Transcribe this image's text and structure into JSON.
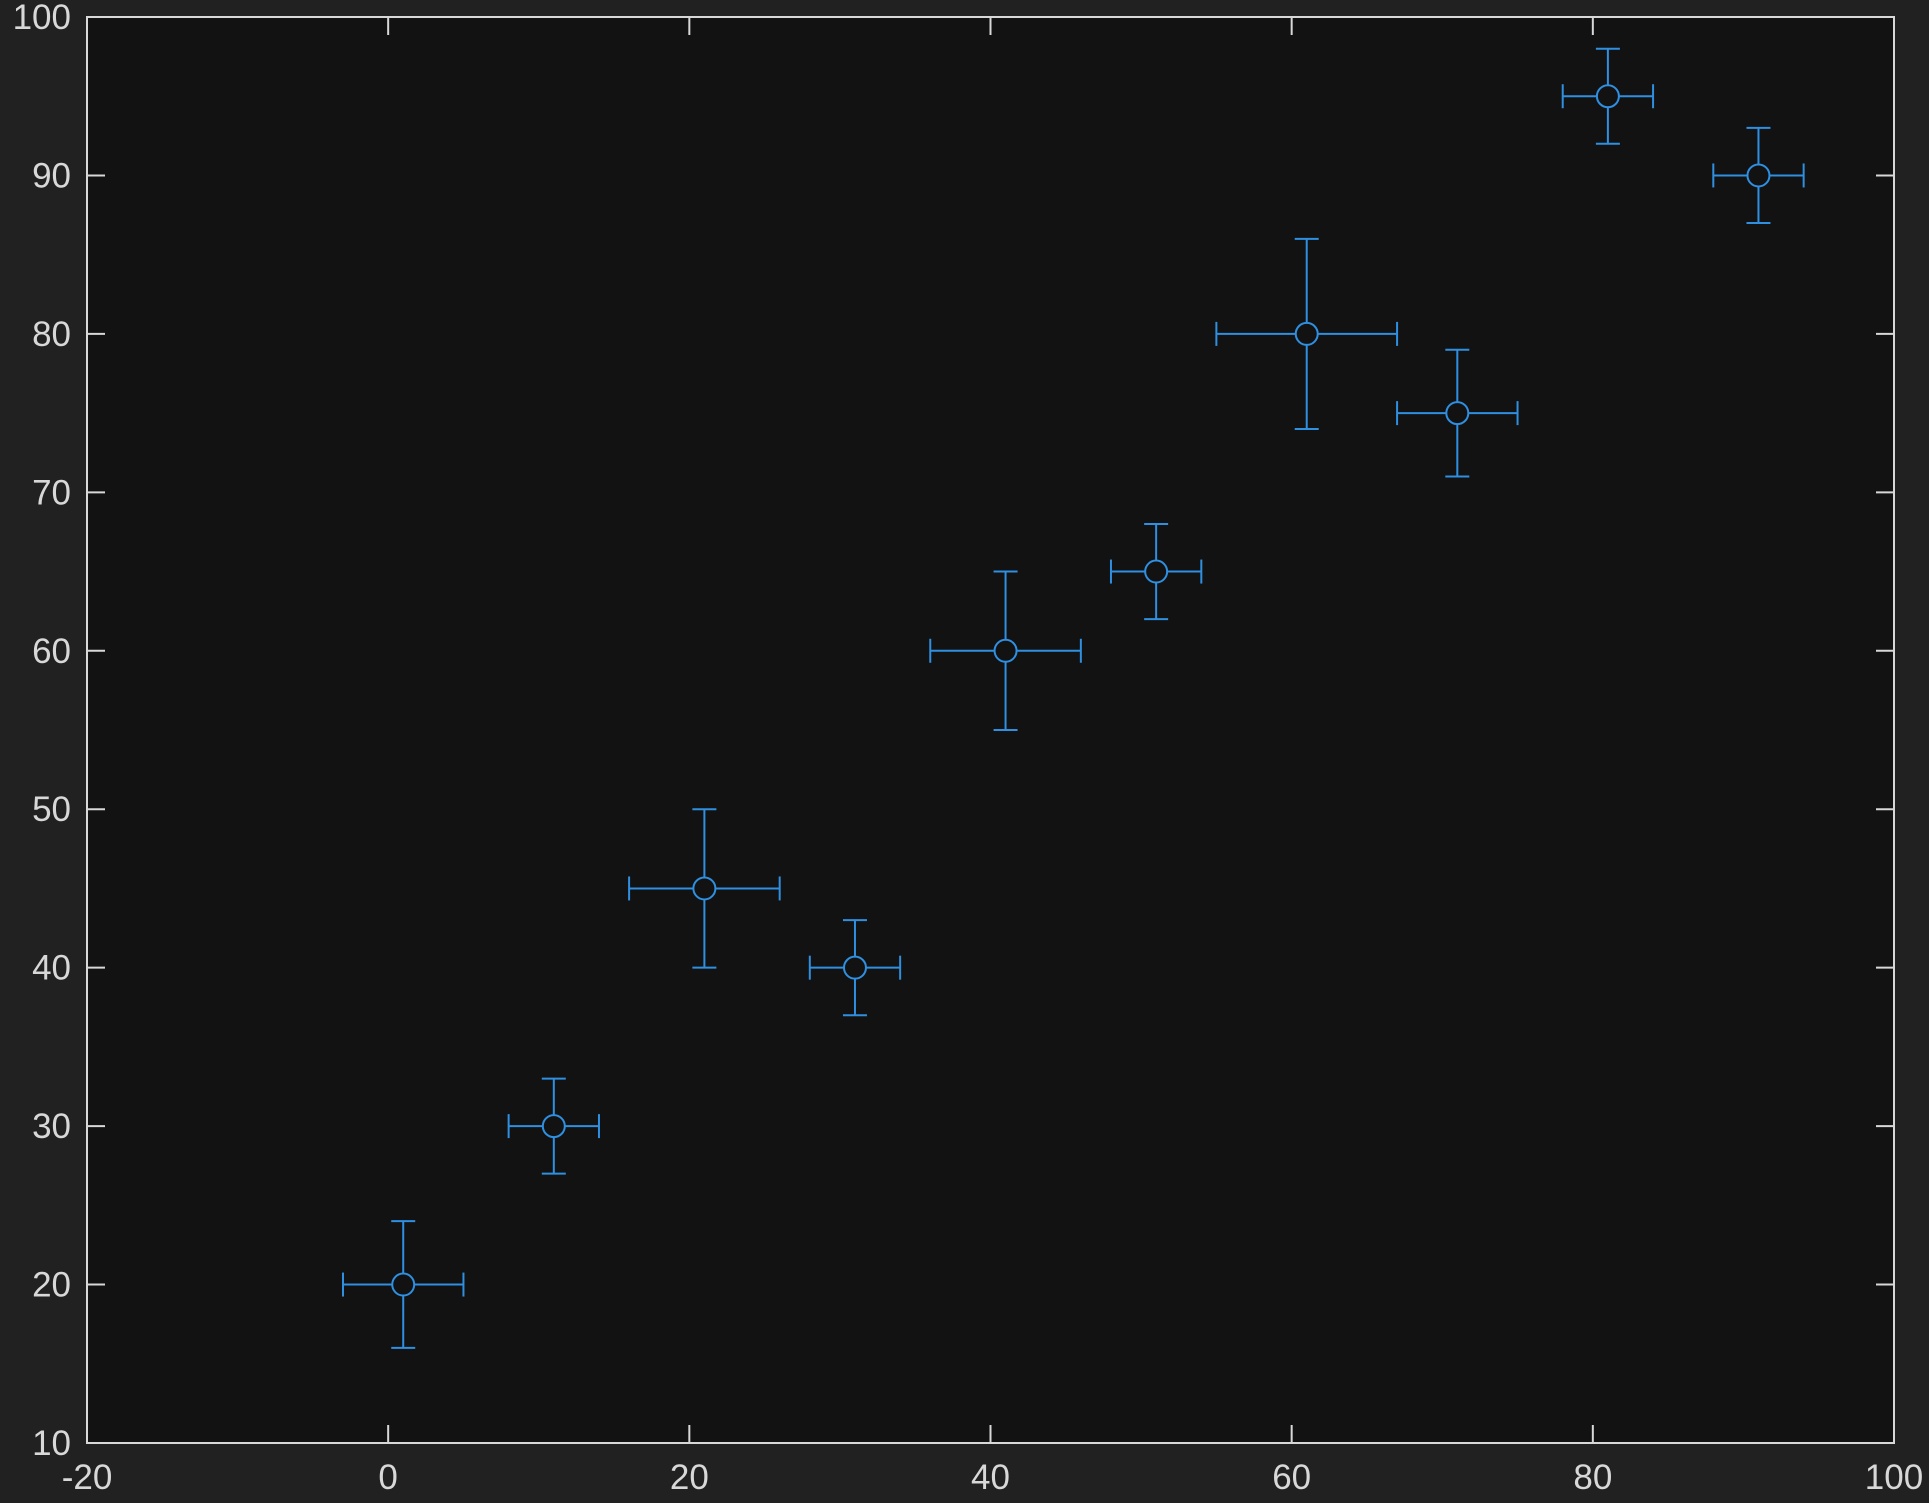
{
  "chart_data": {
    "type": "scatter",
    "title": "",
    "xlabel": "",
    "ylabel": "",
    "xlim": [
      -20,
      100
    ],
    "ylim": [
      10,
      100
    ],
    "xticks": [
      -20,
      0,
      20,
      40,
      60,
      80,
      100
    ],
    "yticks": [
      10,
      20,
      30,
      40,
      50,
      60,
      70,
      80,
      90,
      100
    ],
    "grid": false,
    "legend": "none",
    "colors": {
      "figure_background": "#212121",
      "axes_background": "#121212",
      "axes_line": "#d8d8d8",
      "tick_label": "#d8d8d8",
      "series": "#2f8fe0"
    },
    "series": [
      {
        "marker": "circle",
        "points": [
          {
            "x": 1,
            "y": 20,
            "xerr": 4,
            "yerr": 4
          },
          {
            "x": 11,
            "y": 30,
            "xerr": 3,
            "yerr": 3
          },
          {
            "x": 21,
            "y": 45,
            "xerr": 5,
            "yerr": 5
          },
          {
            "x": 31,
            "y": 40,
            "xerr": 3,
            "yerr": 3
          },
          {
            "x": 41,
            "y": 60,
            "xerr": 5,
            "yerr": 5
          },
          {
            "x": 51,
            "y": 65,
            "xerr": 3,
            "yerr": 3
          },
          {
            "x": 61,
            "y": 80,
            "xerr": 6,
            "yerr": 6
          },
          {
            "x": 71,
            "y": 75,
            "xerr": 4,
            "yerr": 4
          },
          {
            "x": 81,
            "y": 95,
            "xerr": 3,
            "yerr": 3
          },
          {
            "x": 91,
            "y": 90,
            "xerr": 3,
            "yerr": 3
          }
        ]
      }
    ]
  }
}
